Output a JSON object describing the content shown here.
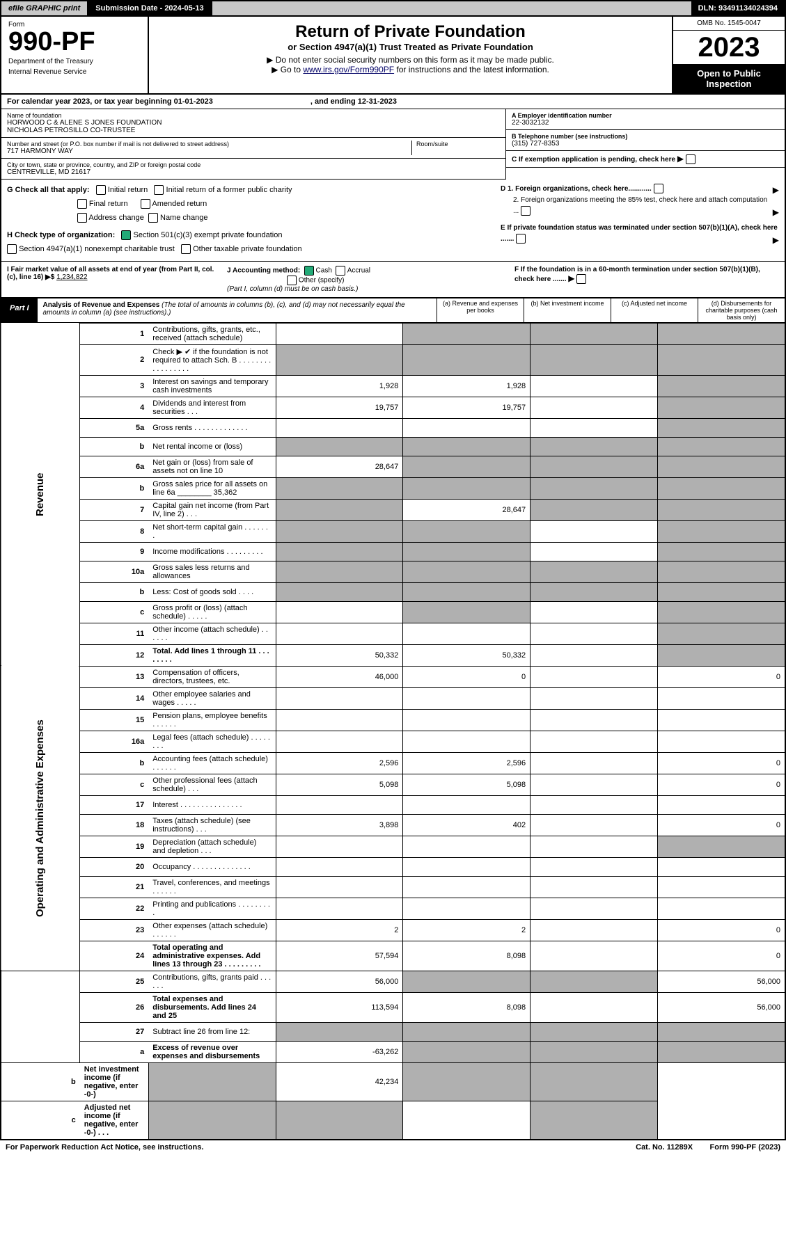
{
  "topbar": {
    "efile": "efile GRAPHIC print",
    "submission": "Submission Date - 2024-05-13",
    "dln": "DLN: 93491134024394"
  },
  "header": {
    "form": "Form",
    "num": "990-PF",
    "dept": "Department of the Treasury",
    "irs": "Internal Revenue Service",
    "title": "Return of Private Foundation",
    "subtitle": "or Section 4947(a)(1) Trust Treated as Private Foundation",
    "note1": "▶ Do not enter social security numbers on this form as it may be made public.",
    "note2": "▶ Go to ",
    "link": "www.irs.gov/Form990PF",
    "note3": " for instructions and the latest information.",
    "omb": "OMB No. 1545-0047",
    "year": "2023",
    "inspect": "Open to Public Inspection"
  },
  "cal": {
    "text": "For calendar year 2023, or tax year beginning 01-01-2023",
    "end": ", and ending 12-31-2023"
  },
  "id": {
    "name_lbl": "Name of foundation",
    "name1": "HORWOOD C & ALENE S JONES FOUNDATION",
    "name2": "NICHOLAS PETROSILLO CO-TRUSTEE",
    "addr_lbl": "Number and street (or P.O. box number if mail is not delivered to street address)",
    "addr": "717 HARMONY WAY",
    "room": "Room/suite",
    "city_lbl": "City or town, state or province, country, and ZIP or foreign postal code",
    "city": "CENTREVILLE, MD  21617",
    "ein_lbl": "A Employer identification number",
    "ein": "22-3032132",
    "tel_lbl": "B Telephone number (see instructions)",
    "tel": "(315) 727-8353",
    "c": "C If exemption application is pending, check here",
    "d1": "D 1. Foreign organizations, check here............",
    "d2": "2. Foreign organizations meeting the 85% test, check here and attach computation ...",
    "e": "E  If private foundation status was terminated under section 507(b)(1)(A), check here .......",
    "f": "F  If the foundation is in a 60-month termination under section 507(b)(1)(B), check here ......."
  },
  "g": {
    "label": "G Check all that apply:",
    "initial": "Initial return",
    "initial_former": "Initial return of a former public charity",
    "final": "Final return",
    "amended": "Amended return",
    "address": "Address change",
    "name": "Name change"
  },
  "h": {
    "label": "H Check type of organization:",
    "s501": "Section 501(c)(3) exempt private foundation",
    "s4947": "Section 4947(a)(1) nonexempt charitable trust",
    "other": "Other taxable private foundation"
  },
  "i": {
    "label": "I Fair market value of all assets at end of year (from Part II, col. (c), line 16) ▶$",
    "val": "1,234,822"
  },
  "j": {
    "label": "J Accounting method:",
    "cash": "Cash",
    "accrual": "Accrual",
    "other": "Other (specify)",
    "note": "(Part I, column (d) must be on cash basis.)"
  },
  "part1": {
    "label": "Part I",
    "title": "Analysis of Revenue and Expenses",
    "sub": "(The total of amounts in columns (b), (c), and (d) may not necessarily equal the amounts in column (a) (see instructions).)",
    "colA": "(a) Revenue and expenses per books",
    "colB": "(b) Net investment income",
    "colC": "(c) Adjusted net income",
    "colD": "(d) Disbursements for charitable purposes (cash basis only)"
  },
  "sections": {
    "rev": "Revenue",
    "exp": "Operating and Administrative Expenses"
  },
  "rows": [
    {
      "n": "1",
      "d": "Contributions, gifts, grants, etc., received (attach schedule)",
      "a": "",
      "b": "S",
      "c": "S",
      "dd": "S"
    },
    {
      "n": "2",
      "d": "Check ▶ ✔ if the foundation is not required to attach Sch. B  .  .  .  .  .  .  .  .  .  .  .  .  .  .  .  .  .",
      "a": "S",
      "b": "S",
      "c": "S",
      "dd": "S"
    },
    {
      "n": "3",
      "d": "Interest on savings and temporary cash investments",
      "a": "1,928",
      "b": "1,928",
      "c": "",
      "dd": "S"
    },
    {
      "n": "4",
      "d": "Dividends and interest from securities  .  .  .",
      "a": "19,757",
      "b": "19,757",
      "c": "",
      "dd": "S"
    },
    {
      "n": "5a",
      "d": "Gross rents  .  .  .  .  .  .  .  .  .  .  .  .  .",
      "a": "",
      "b": "",
      "c": "",
      "dd": "S"
    },
    {
      "n": "b",
      "d": "Net rental income or (loss)",
      "a": "S",
      "b": "S",
      "c": "S",
      "dd": "S"
    },
    {
      "n": "6a",
      "d": "Net gain or (loss) from sale of assets not on line 10",
      "a": "28,647",
      "b": "S",
      "c": "S",
      "dd": "S"
    },
    {
      "n": "b",
      "d": "Gross sales price for all assets on line 6a ________ 35,362",
      "a": "S",
      "b": "S",
      "c": "S",
      "dd": "S"
    },
    {
      "n": "7",
      "d": "Capital gain net income (from Part IV, line 2)  .  .  .",
      "a": "S",
      "b": "28,647",
      "c": "S",
      "dd": "S"
    },
    {
      "n": "8",
      "d": "Net short-term capital gain  .  .  .  .  .  .  .",
      "a": "S",
      "b": "S",
      "c": "",
      "dd": "S"
    },
    {
      "n": "9",
      "d": "Income modifications  .  .  .  .  .  .  .  .  .",
      "a": "S",
      "b": "S",
      "c": "",
      "dd": "S"
    },
    {
      "n": "10a",
      "d": "Gross sales less returns and allowances",
      "a": "S",
      "b": "S",
      "c": "S",
      "dd": "S"
    },
    {
      "n": "b",
      "d": "Less: Cost of goods sold  .  .  .  .",
      "a": "S",
      "b": "S",
      "c": "S",
      "dd": "S"
    },
    {
      "n": "c",
      "d": "Gross profit or (loss) (attach schedule)  .  .  .  .  .",
      "a": "",
      "b": "S",
      "c": "",
      "dd": "S"
    },
    {
      "n": "11",
      "d": "Other income (attach schedule)  .  .  .  .  .  .",
      "a": "",
      "b": "",
      "c": "",
      "dd": "S"
    },
    {
      "n": "12",
      "d": "Total. Add lines 1 through 11  .  .  .  .  .  .  .  .",
      "a": "50,332",
      "b": "50,332",
      "c": "",
      "dd": "S",
      "bold": true
    },
    {
      "n": "13",
      "d": "Compensation of officers, directors, trustees, etc.",
      "a": "46,000",
      "b": "0",
      "c": "",
      "dd": "0"
    },
    {
      "n": "14",
      "d": "Other employee salaries and wages  .  .  .  .  .",
      "a": "",
      "b": "",
      "c": "",
      "dd": ""
    },
    {
      "n": "15",
      "d": "Pension plans, employee benefits  .  .  .  .  .  .",
      "a": "",
      "b": "",
      "c": "",
      "dd": ""
    },
    {
      "n": "16a",
      "d": "Legal fees (attach schedule)  .  .  .  .  .  .  .  .",
      "a": "",
      "b": "",
      "c": "",
      "dd": ""
    },
    {
      "n": "b",
      "d": "Accounting fees (attach schedule)  .  .  .  .  .  .",
      "a": "2,596",
      "b": "2,596",
      "c": "",
      "dd": "0"
    },
    {
      "n": "c",
      "d": "Other professional fees (attach schedule)  .  .  .",
      "a": "5,098",
      "b": "5,098",
      "c": "",
      "dd": "0"
    },
    {
      "n": "17",
      "d": "Interest  .  .  .  .  .  .  .  .  .  .  .  .  .  .  .",
      "a": "",
      "b": "",
      "c": "",
      "dd": ""
    },
    {
      "n": "18",
      "d": "Taxes (attach schedule) (see instructions)  .  .  .",
      "a": "3,898",
      "b": "402",
      "c": "",
      "dd": "0"
    },
    {
      "n": "19",
      "d": "Depreciation (attach schedule) and depletion  .  .  .",
      "a": "",
      "b": "",
      "c": "",
      "dd": "S"
    },
    {
      "n": "20",
      "d": "Occupancy  .  .  .  .  .  .  .  .  .  .  .  .  .  .",
      "a": "",
      "b": "",
      "c": "",
      "dd": ""
    },
    {
      "n": "21",
      "d": "Travel, conferences, and meetings  .  .  .  .  .  .",
      "a": "",
      "b": "",
      "c": "",
      "dd": ""
    },
    {
      "n": "22",
      "d": "Printing and publications  .  .  .  .  .  .  .  .  .",
      "a": "",
      "b": "",
      "c": "",
      "dd": ""
    },
    {
      "n": "23",
      "d": "Other expenses (attach schedule)  .  .  .  .  .  .",
      "a": "2",
      "b": "2",
      "c": "",
      "dd": "0"
    },
    {
      "n": "24",
      "d": "Total operating and administrative expenses. Add lines 13 through 23  .  .  .  .  .  .  .  .  .",
      "a": "57,594",
      "b": "8,098",
      "c": "",
      "dd": "0",
      "bold": true
    },
    {
      "n": "25",
      "d": "Contributions, gifts, grants paid  .  .  .  .  .  .",
      "a": "56,000",
      "b": "S",
      "c": "S",
      "dd": "56,000"
    },
    {
      "n": "26",
      "d": "Total expenses and disbursements. Add lines 24 and 25",
      "a": "113,594",
      "b": "8,098",
      "c": "",
      "dd": "56,000",
      "bold": true
    },
    {
      "n": "27",
      "d": "Subtract line 26 from line 12:",
      "a": "S",
      "b": "S",
      "c": "S",
      "dd": "S"
    },
    {
      "n": "a",
      "d": "Excess of revenue over expenses and disbursements",
      "a": "-63,262",
      "b": "S",
      "c": "S",
      "dd": "S",
      "bold": true
    },
    {
      "n": "b",
      "d": "Net investment income (if negative, enter -0-)",
      "a": "S",
      "b": "42,234",
      "c": "S",
      "dd": "S",
      "bold": true
    },
    {
      "n": "c",
      "d": "Adjusted net income (if negative, enter -0-)  .  .  .",
      "a": "S",
      "b": "S",
      "c": "",
      "dd": "S",
      "bold": true
    }
  ],
  "footer": {
    "left": "For Paperwork Reduction Act Notice, see instructions.",
    "mid": "Cat. No. 11289X",
    "right": "Form 990-PF (2023)"
  }
}
